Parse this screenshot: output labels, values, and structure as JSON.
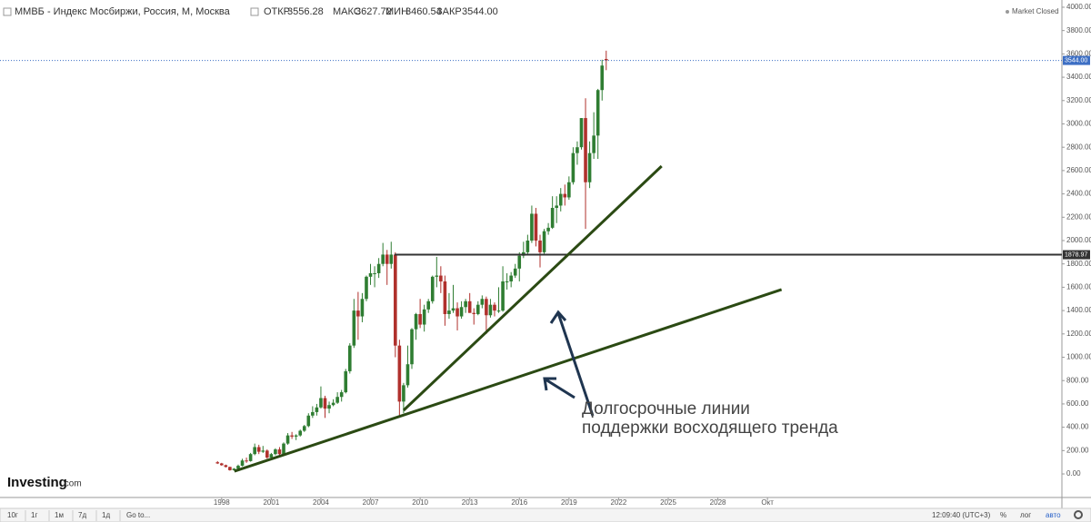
{
  "header": {
    "title": "ММВБ - Индекс Мосбиржи, Россия, М, Москва",
    "open_label": "ОТКР",
    "open": "3556.28",
    "high_label": "МАКС",
    "high": "3627.72",
    "low_label": "МИН",
    "low": "3460.54",
    "close_label": "ЗАКР",
    "close": "3544.00",
    "status": "Market Closed"
  },
  "logo": {
    "brand": "Investing",
    "suffix": ".com"
  },
  "toolbar": {
    "ranges": [
      "10г",
      "1г",
      "1м",
      "7д",
      "1д"
    ],
    "goto": "Go to...",
    "time": "12:09:40 (UTC+3)",
    "percent": "%",
    "log": "лог",
    "auto": "авто"
  },
  "chart_data": {
    "type": "candlestick",
    "x": [
      1997.75,
      1998,
      1998.25,
      1998.5,
      1998.75,
      1999,
      1999.25,
      1999.5,
      1999.75,
      2000,
      2000.25,
      2000.5,
      2000.75,
      2001,
      2001.25,
      2001.5,
      2001.75,
      2002,
      2002.25,
      2002.5,
      2002.75,
      2003,
      2003.25,
      2003.5,
      2003.75,
      2004,
      2004.25,
      2004.5,
      2004.75,
      2005,
      2005.25,
      2005.5,
      2005.75,
      2006,
      2006.25,
      2006.5,
      2006.75,
      2007,
      2007.25,
      2007.5,
      2007.75,
      2008,
      2008.25,
      2008.5,
      2008.75,
      2009,
      2009.25,
      2009.5,
      2009.75,
      2010,
      2010.25,
      2010.5,
      2010.75,
      2011,
      2011.25,
      2011.5,
      2011.75,
      2012,
      2012.25,
      2012.5,
      2012.75,
      2013,
      2013.25,
      2013.5,
      2013.75,
      2014,
      2014.25,
      2014.5,
      2014.75,
      2015,
      2015.25,
      2015.5,
      2015.75,
      2016,
      2016.25,
      2016.5,
      2016.75,
      2017,
      2017.25,
      2017.5,
      2017.75,
      2018,
      2018.25,
      2018.5,
      2018.75,
      2019,
      2019.25,
      2019.5,
      2019.75,
      2020,
      2020.25,
      2020.5,
      2020.75,
      2021,
      2021.25
    ],
    "open": [
      100,
      90,
      75,
      60,
      32,
      45,
      70,
      115,
      110,
      170,
      230,
      190,
      200,
      140,
      170,
      210,
      170,
      260,
      330,
      320,
      330,
      370,
      410,
      500,
      530,
      570,
      650,
      560,
      590,
      610,
      660,
      700,
      880,
      1100,
      1400,
      1350,
      1500,
      1690,
      1720,
      1720,
      1800,
      1880,
      1800,
      1880,
      1100,
      620,
      760,
      940,
      1240,
      1370,
      1280,
      1410,
      1480,
      1690,
      1700,
      1650,
      1370,
      1400,
      1420,
      1350,
      1430,
      1480,
      1380,
      1370,
      1450,
      1500,
      1360,
      1450,
      1400,
      1400,
      1650,
      1650,
      1700,
      1760,
      1870,
      1900,
      2000,
      2230,
      2000,
      1900,
      2080,
      2110,
      2280,
      2300,
      2400,
      2370,
      2500,
      2750,
      2800,
      3050,
      2500,
      2750,
      2900,
      3290,
      3556.28
    ],
    "high": [
      110,
      95,
      80,
      62,
      50,
      80,
      130,
      140,
      180,
      260,
      250,
      240,
      210,
      180,
      220,
      230,
      270,
      350,
      360,
      340,
      380,
      420,
      520,
      580,
      600,
      750,
      670,
      620,
      640,
      700,
      720,
      900,
      1120,
      1500,
      1560,
      1550,
      1700,
      1800,
      1780,
      1850,
      1980,
      1920,
      1990,
      1900,
      1150,
      780,
      1100,
      1250,
      1380,
      1500,
      1450,
      1500,
      1700,
      1860,
      1780,
      1700,
      1550,
      1620,
      1470,
      1480,
      1500,
      1550,
      1420,
      1480,
      1530,
      1520,
      1500,
      1470,
      1600,
      1780,
      1720,
      1730,
      1800,
      1900,
      1990,
      2050,
      2300,
      2280,
      2050,
      2100,
      2150,
      2380,
      2380,
      2450,
      2480,
      2550,
      2800,
      2850,
      3050,
      3220,
      2850,
      3100,
      3300,
      3550,
      3627.72
    ],
    "low": [
      85,
      70,
      55,
      28,
      28,
      40,
      65,
      95,
      105,
      160,
      170,
      180,
      130,
      130,
      160,
      160,
      160,
      250,
      300,
      290,
      320,
      360,
      400,
      480,
      500,
      560,
      480,
      520,
      580,
      600,
      620,
      690,
      860,
      1080,
      1150,
      1300,
      1480,
      1620,
      1600,
      1680,
      1780,
      1620,
      1760,
      1000,
      500,
      520,
      740,
      900,
      1150,
      1250,
      1220,
      1380,
      1460,
      1600,
      1550,
      1270,
      1330,
      1380,
      1230,
      1330,
      1380,
      1380,
      1280,
      1360,
      1420,
      1200,
      1340,
      1350,
      1380,
      1390,
      1580,
      1600,
      1680,
      1650,
      1850,
      1880,
      1980,
      1950,
      1770,
      1880,
      2050,
      2100,
      2150,
      2250,
      2300,
      2350,
      2480,
      2650,
      2780,
      2100,
      2450,
      2700,
      2700,
      3200,
      3460.54
    ],
    "close": [
      90,
      75,
      60,
      32,
      45,
      70,
      115,
      110,
      170,
      230,
      190,
      200,
      140,
      170,
      210,
      170,
      260,
      330,
      320,
      330,
      370,
      410,
      500,
      530,
      570,
      650,
      560,
      590,
      610,
      660,
      700,
      880,
      1100,
      1400,
      1350,
      1500,
      1690,
      1720,
      1720,
      1800,
      1880,
      1800,
      1880,
      1100,
      620,
      760,
      940,
      1240,
      1370,
      1280,
      1410,
      1480,
      1690,
      1700,
      1650,
      1370,
      1400,
      1420,
      1350,
      1430,
      1480,
      1380,
      1370,
      1450,
      1500,
      1360,
      1450,
      1400,
      1400,
      1650,
      1650,
      1700,
      1760,
      1870,
      1900,
      2000,
      2230,
      2000,
      1900,
      2080,
      2110,
      2280,
      2300,
      2400,
      2370,
      2500,
      2750,
      2800,
      3050,
      2500,
      2750,
      2900,
      3290,
      3500,
      3544
    ],
    "up_color": "#2f7d32",
    "down_color": "#b0302c",
    "xlim": [
      1984.6,
      2048.8
    ],
    "xticks": [
      1998,
      2001,
      2004,
      2007,
      2010,
      2013,
      2016,
      2019,
      2022,
      2025,
      2028,
      {
        "value": 2031,
        "label": "Окт"
      }
    ],
    "ylim": [
      -202,
      4062
    ],
    "yticks": [
      {
        "value": 0,
        "label": "0.00"
      },
      {
        "value": 200,
        "label": "200.00"
      },
      {
        "value": 400,
        "label": "400.00"
      },
      {
        "value": 600,
        "label": "600.00"
      },
      {
        "value": 800,
        "label": "800.00"
      },
      {
        "value": 1000,
        "label": "1000.00"
      },
      {
        "value": 1200,
        "label": "1200.00"
      },
      {
        "value": 1400,
        "label": "1400.00"
      },
      {
        "value": 1600,
        "label": "1600.00"
      },
      {
        "value": 1800,
        "label": "1800.00"
      },
      {
        "value": 2000,
        "label": "2000.00"
      },
      {
        "value": 2200,
        "label": "2200.00"
      },
      {
        "value": 2400,
        "label": "2400.00"
      },
      {
        "value": 2600,
        "label": "2600.00"
      },
      {
        "value": 2800,
        "label": "2800.00"
      },
      {
        "value": 3000,
        "label": "3000.00"
      },
      {
        "value": 3200,
        "label": "3200.00"
      },
      {
        "value": 3400,
        "label": "3400.00"
      },
      {
        "value": 3600,
        "label": "3600.00"
      },
      {
        "value": 3800,
        "label": "3800.00"
      },
      {
        "value": 4000,
        "label": "4000.00"
      }
    ],
    "last_price": {
      "value": 3544,
      "label": "3544.00",
      "color": "#3d6fc4"
    },
    "level": {
      "value": 1878.97,
      "label": "1878.97",
      "color": "#333333"
    },
    "trendlines": [
      {
        "x": [
          2009.0,
          2024.6
        ],
        "y": [
          545,
          2638
        ],
        "color": "#2b4a13"
      },
      {
        "x": [
          1998.77,
          2031.85
        ],
        "y": [
          23,
          1580
        ],
        "color": "#2b4a13"
      }
    ],
    "annotation": [
      "Долгосрочные линии",
      "поддержки восходящего тренда"
    ]
  }
}
